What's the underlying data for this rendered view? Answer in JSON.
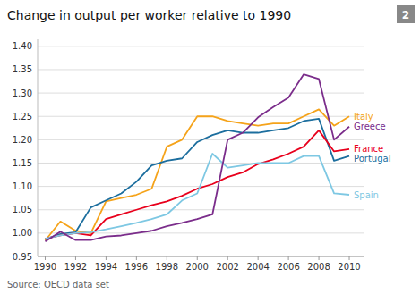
{
  "chart_data": {
    "type": "line",
    "title": "Change in output per worker relative to 1990",
    "annotations": [
      "2",
      "Source: OECD data set"
    ],
    "x": [
      1990,
      1991,
      1992,
      1993,
      1994,
      1995,
      1996,
      1997,
      1998,
      1999,
      2000,
      2001,
      2002,
      2003,
      2004,
      2005,
      2006,
      2007,
      2008,
      2009,
      2010
    ],
    "xlim": [
      1989.5,
      2011.0
    ],
    "xticks": [
      1990,
      1992,
      1994,
      1996,
      1998,
      2000,
      2002,
      2004,
      2006,
      2008,
      2010
    ],
    "ylim": [
      0.95,
      1.415
    ],
    "yticks": [
      0.95,
      {
        "value": 1.0,
        "label": "1.00"
      },
      1.05,
      {
        "value": 1.1,
        "label": "1.10"
      },
      1.15,
      {
        "value": 1.2,
        "label": "1.20"
      },
      1.25,
      {
        "value": 1.3,
        "label": "1.30"
      },
      1.35,
      {
        "value": 1.4,
        "label": "1.40"
      }
    ],
    "grid": true,
    "series": [
      {
        "name": "Italy",
        "color": "#F5A31A",
        "values": [
          0.984,
          1.025,
          1.005,
          1.0,
          1.068,
          1.075,
          1.082,
          1.095,
          1.185,
          1.2,
          1.25,
          1.25,
          1.24,
          1.235,
          1.23,
          1.235,
          1.235,
          1.25,
          1.265,
          1.23,
          1.25
        ]
      },
      {
        "name": "Portugal",
        "color": "#1C6E9E",
        "values": [
          0.987,
          0.998,
          1.002,
          1.055,
          1.07,
          1.085,
          1.11,
          1.145,
          1.155,
          1.16,
          1.195,
          1.21,
          1.22,
          1.215,
          1.215,
          1.22,
          1.225,
          1.24,
          1.245,
          1.155,
          1.165
        ]
      },
      {
        "name": "France",
        "color": "#E8001C",
        "values": [
          0.988,
          0.995,
          1.0,
          0.995,
          1.03,
          1.04,
          1.05,
          1.06,
          1.068,
          1.08,
          1.095,
          1.105,
          1.12,
          1.13,
          1.148,
          1.158,
          1.17,
          1.185,
          1.22,
          1.175,
          1.18
        ]
      },
      {
        "name": "Spain",
        "color": "#7EC8E3",
        "values": [
          0.988,
          0.995,
          1.0,
          1.002,
          1.008,
          1.015,
          1.022,
          1.03,
          1.04,
          1.07,
          1.085,
          1.17,
          1.14,
          1.145,
          1.15,
          1.15,
          1.15,
          1.165,
          1.165,
          1.085,
          1.082
        ]
      },
      {
        "name": "Greece",
        "color": "#7B2D8B",
        "values": [
          0.982,
          1.003,
          0.985,
          0.985,
          0.993,
          0.995,
          1.0,
          1.005,
          1.015,
          1.022,
          1.03,
          1.04,
          1.2,
          1.215,
          1.248,
          1.27,
          1.29,
          1.34,
          1.33,
          1.2,
          1.228
        ]
      }
    ]
  }
}
